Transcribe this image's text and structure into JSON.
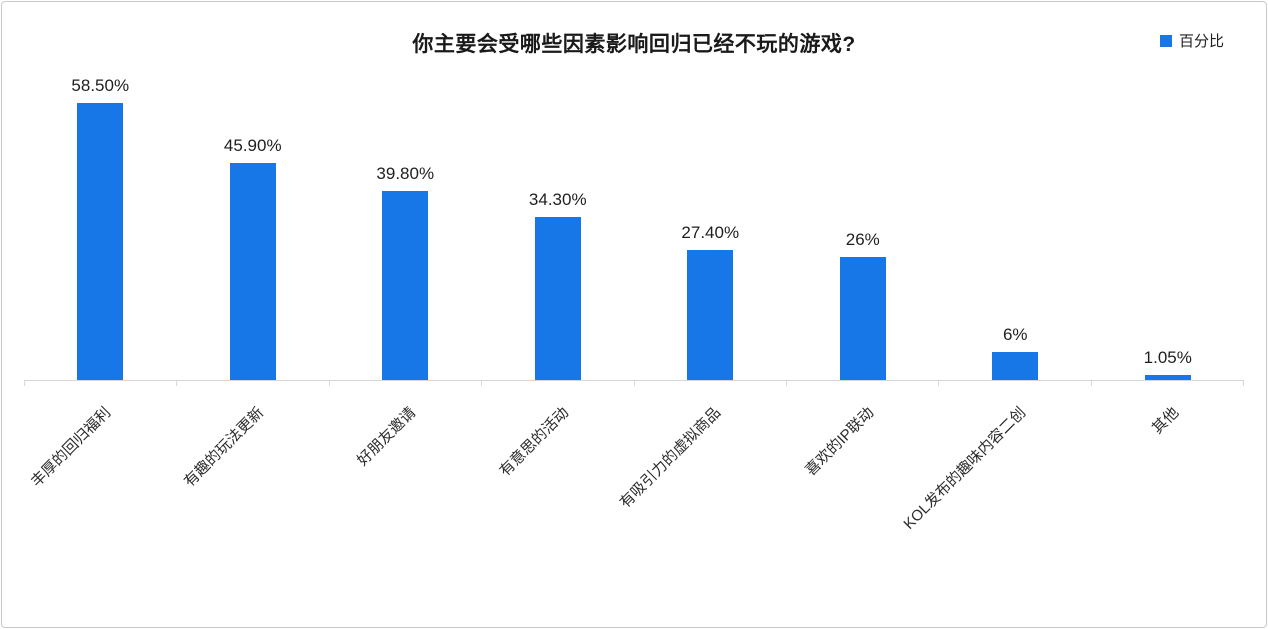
{
  "chart_data": {
    "type": "bar",
    "title": "你主要会受哪些因素影响回归已经不玩的游戏?",
    "legend_label": "百分比",
    "legend_position": "top-right",
    "categories": [
      "丰厚的回归福利",
      "有趣的玩法更新",
      "好朋友邀请",
      "有意思的活动",
      "有吸引力的虚拟商品",
      "喜欢的IP联动",
      "KOL发布的趣味内容二创",
      "其他"
    ],
    "values": [
      58.5,
      45.9,
      39.8,
      34.3,
      27.4,
      26,
      6,
      1.05
    ],
    "value_labels": [
      "58.50%",
      "45.90%",
      "39.80%",
      "34.30%",
      "27.40%",
      "26%",
      "6%",
      "1.05%"
    ],
    "ylabel": "",
    "xlabel": "",
    "ylim": [
      0,
      65
    ],
    "grid": false,
    "bar_color": "#1777E6",
    "axis_color": "#d6d6d6",
    "title_color": "#1a1a1a"
  }
}
